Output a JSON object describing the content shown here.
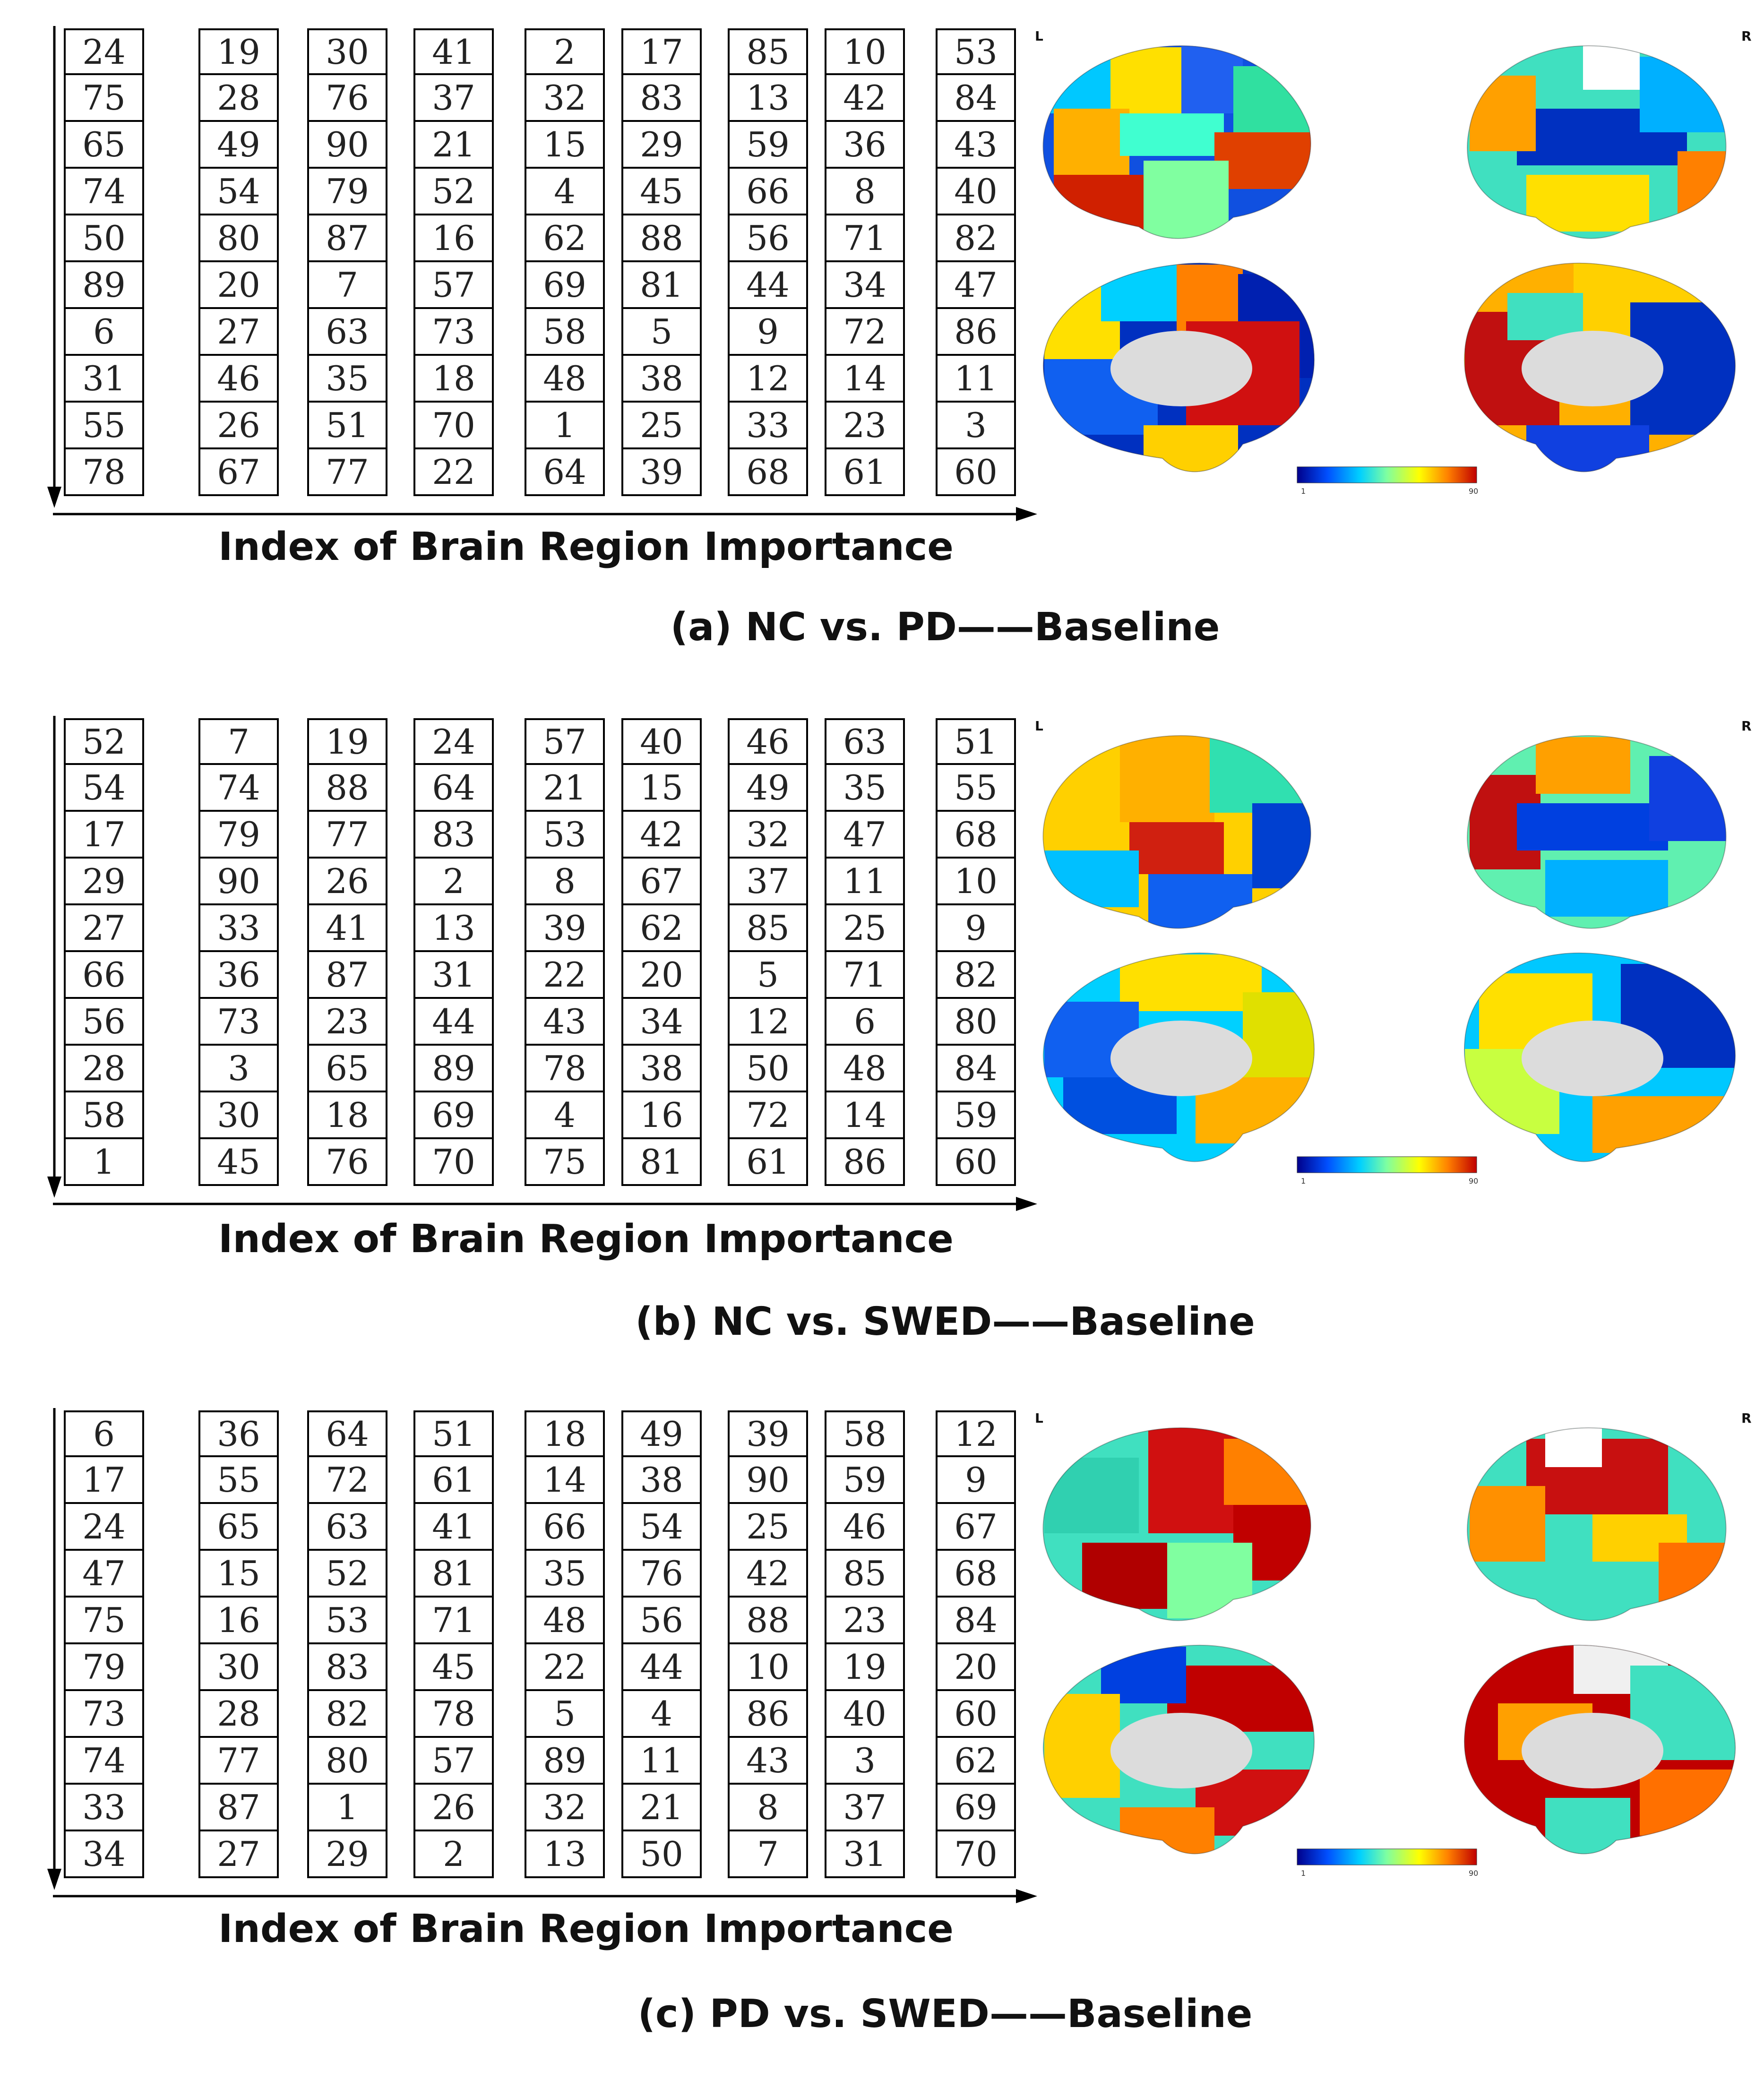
{
  "axis_label": "Index of Brain Region Importance",
  "hemisphere_labels": {
    "left": "L",
    "right": "R"
  },
  "colorbar": {
    "min": "1",
    "max": "90",
    "colormap": [
      "#00008b",
      "#0050ff",
      "#00d0ff",
      "#7fffa0",
      "#ffff00",
      "#ff8000",
      "#c00000"
    ]
  },
  "panels": [
    {
      "caption": "(a) NC vs. PD——Baseline",
      "columns": [
        [
          "24",
          "75",
          "65",
          "74",
          "50",
          "89",
          "6",
          "31",
          "55",
          "78"
        ],
        [
          "19",
          "28",
          "49",
          "54",
          "80",
          "20",
          "27",
          "46",
          "26",
          "67"
        ],
        [
          "30",
          "76",
          "90",
          "79",
          "87",
          "7",
          "63",
          "35",
          "51",
          "77"
        ],
        [
          "41",
          "37",
          "21",
          "52",
          "16",
          "57",
          "73",
          "18",
          "70",
          "22"
        ],
        [
          "2",
          "32",
          "15",
          "4",
          "62",
          "69",
          "58",
          "48",
          "1",
          "64"
        ],
        [
          "17",
          "83",
          "29",
          "45",
          "88",
          "81",
          "5",
          "38",
          "25",
          "39"
        ],
        [
          "85",
          "13",
          "59",
          "66",
          "56",
          "44",
          "9",
          "12",
          "33",
          "68"
        ],
        [
          "10",
          "42",
          "36",
          "8",
          "71",
          "34",
          "72",
          "14",
          "23",
          "61"
        ],
        [
          "53",
          "84",
          "43",
          "40",
          "82",
          "47",
          "86",
          "11",
          "3",
          "60"
        ]
      ]
    },
    {
      "caption": "(b) NC vs. SWED——Baseline",
      "columns": [
        [
          "52",
          "54",
          "17",
          "29",
          "27",
          "66",
          "56",
          "28",
          "58",
          "1"
        ],
        [
          "7",
          "74",
          "79",
          "90",
          "33",
          "36",
          "73",
          "3",
          "30",
          "45"
        ],
        [
          "19",
          "88",
          "77",
          "26",
          "41",
          "87",
          "23",
          "65",
          "18",
          "76"
        ],
        [
          "24",
          "64",
          "83",
          "2",
          "13",
          "31",
          "44",
          "89",
          "69",
          "70"
        ],
        [
          "57",
          "21",
          "53",
          "8",
          "39",
          "22",
          "43",
          "78",
          "4",
          "75"
        ],
        [
          "40",
          "15",
          "42",
          "67",
          "62",
          "20",
          "34",
          "38",
          "16",
          "81"
        ],
        [
          "46",
          "49",
          "32",
          "37",
          "85",
          "5",
          "12",
          "50",
          "72",
          "61"
        ],
        [
          "63",
          "35",
          "47",
          "11",
          "25",
          "71",
          "6",
          "48",
          "14",
          "86"
        ],
        [
          "51",
          "55",
          "68",
          "10",
          "9",
          "82",
          "80",
          "84",
          "59",
          "60"
        ]
      ]
    },
    {
      "caption": "(c) PD vs. SWED——Baseline",
      "columns": [
        [
          "6",
          "17",
          "24",
          "47",
          "75",
          "79",
          "73",
          "74",
          "33",
          "34"
        ],
        [
          "36",
          "55",
          "65",
          "15",
          "16",
          "30",
          "28",
          "77",
          "87",
          "27"
        ],
        [
          "64",
          "72",
          "63",
          "52",
          "53",
          "83",
          "82",
          "80",
          "1",
          "29"
        ],
        [
          "51",
          "61",
          "41",
          "81",
          "71",
          "45",
          "78",
          "57",
          "26",
          "2"
        ],
        [
          "18",
          "14",
          "66",
          "35",
          "48",
          "22",
          "5",
          "89",
          "32",
          "13"
        ],
        [
          "49",
          "38",
          "54",
          "76",
          "56",
          "44",
          "4",
          "11",
          "21",
          "50"
        ],
        [
          "39",
          "90",
          "25",
          "42",
          "88",
          "10",
          "86",
          "43",
          "8",
          "7"
        ],
        [
          "58",
          "59",
          "46",
          "85",
          "23",
          "19",
          "40",
          "3",
          "37",
          "31"
        ],
        [
          "12",
          "9",
          "67",
          "68",
          "84",
          "20",
          "60",
          "62",
          "69",
          "70"
        ]
      ]
    }
  ]
}
